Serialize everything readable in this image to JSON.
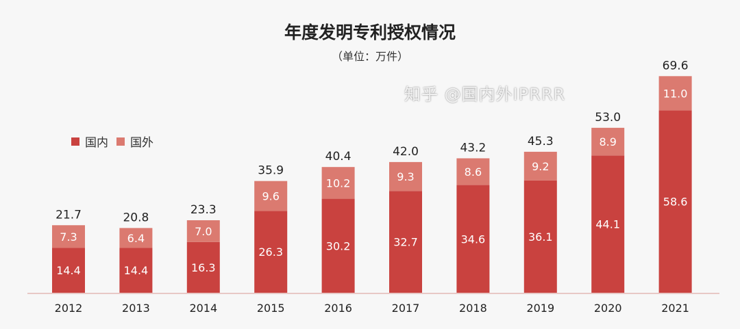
{
  "chart_data": {
    "type": "bar",
    "stacked": true,
    "title": "年度发明专利授权情况",
    "subtitle": "（单位：万件）",
    "categories": [
      "2012",
      "2013",
      "2014",
      "2015",
      "2016",
      "2017",
      "2018",
      "2019",
      "2020",
      "2021"
    ],
    "series": [
      {
        "name": "国内",
        "color": "#c9423f",
        "values": [
          14.4,
          14.4,
          16.3,
          26.3,
          30.2,
          32.7,
          34.6,
          36.1,
          44.1,
          58.6
        ]
      },
      {
        "name": "国外",
        "color": "#db7a70",
        "values": [
          7.3,
          6.4,
          7.0,
          9.6,
          10.2,
          9.3,
          8.6,
          9.2,
          8.9,
          11.0
        ]
      }
    ],
    "totals": [
      "21.7",
      "20.8",
      "23.3",
      "35.9",
      "40.4",
      "42.0",
      "43.2",
      "45.3",
      "53.0",
      "69.6"
    ],
    "ylim": [
      0,
      70
    ],
    "grid": false,
    "legend": "top-left"
  },
  "watermark": "知乎 @国内外IPRRR"
}
